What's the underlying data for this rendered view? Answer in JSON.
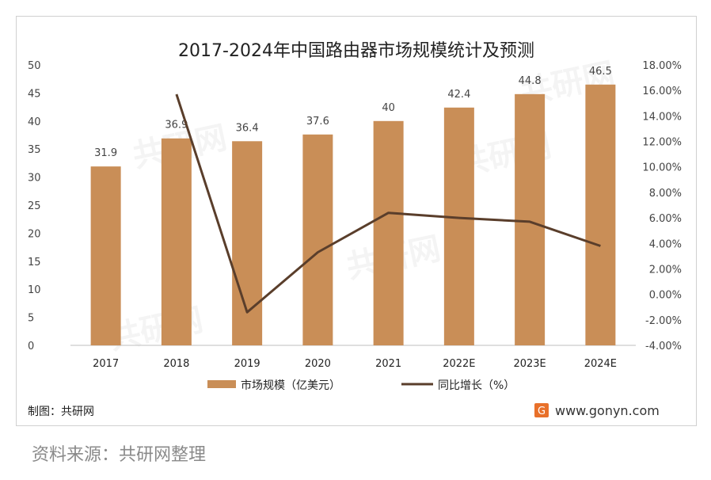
{
  "chart_data": {
    "type": "bar",
    "title": "2017-2024年中国路由器市场规模统计及预测",
    "categories": [
      "2017",
      "2018",
      "2019",
      "2020",
      "2021",
      "2022E",
      "2023E",
      "2024E"
    ],
    "series": [
      {
        "name": "市场规模（亿美元）",
        "type": "bar",
        "axis": "left",
        "values": [
          31.9,
          36.9,
          36.4,
          37.6,
          40,
          42.4,
          44.8,
          46.5
        ],
        "labels": [
          "31.9",
          "36.9",
          "36.4",
          "37.6",
          "40",
          "42.4",
          "44.8",
          "46.5"
        ],
        "color": "#c98e57"
      },
      {
        "name": "同比增长（%）",
        "type": "line",
        "axis": "right",
        "values": [
          null,
          15.7,
          -1.4,
          3.3,
          6.4,
          6.0,
          5.7,
          3.8
        ],
        "color": "#5a3e2b"
      }
    ],
    "ylim_left": [
      0,
      50
    ],
    "yticks_left": [
      "0",
      "5",
      "10",
      "15",
      "20",
      "25",
      "30",
      "35",
      "40",
      "45",
      "50"
    ],
    "ylim_right": [
      -4,
      18
    ],
    "yticks_right": [
      "-4.00%",
      "-2.00%",
      "0.00%",
      "2.00%",
      "4.00%",
      "6.00%",
      "8.00%",
      "10.00%",
      "12.00%",
      "14.00%",
      "16.00%",
      "18.00%"
    ],
    "grid": false,
    "legend": "bottom"
  },
  "footer": {
    "credit": "制图：共研网",
    "website": "www.gonyn.com"
  },
  "source": "资料来源：共研网整理",
  "watermark": "共研网",
  "icons": {
    "brand_logo": "gonyn-logo-icon"
  },
  "colors": {
    "logo": "#e8702a"
  }
}
